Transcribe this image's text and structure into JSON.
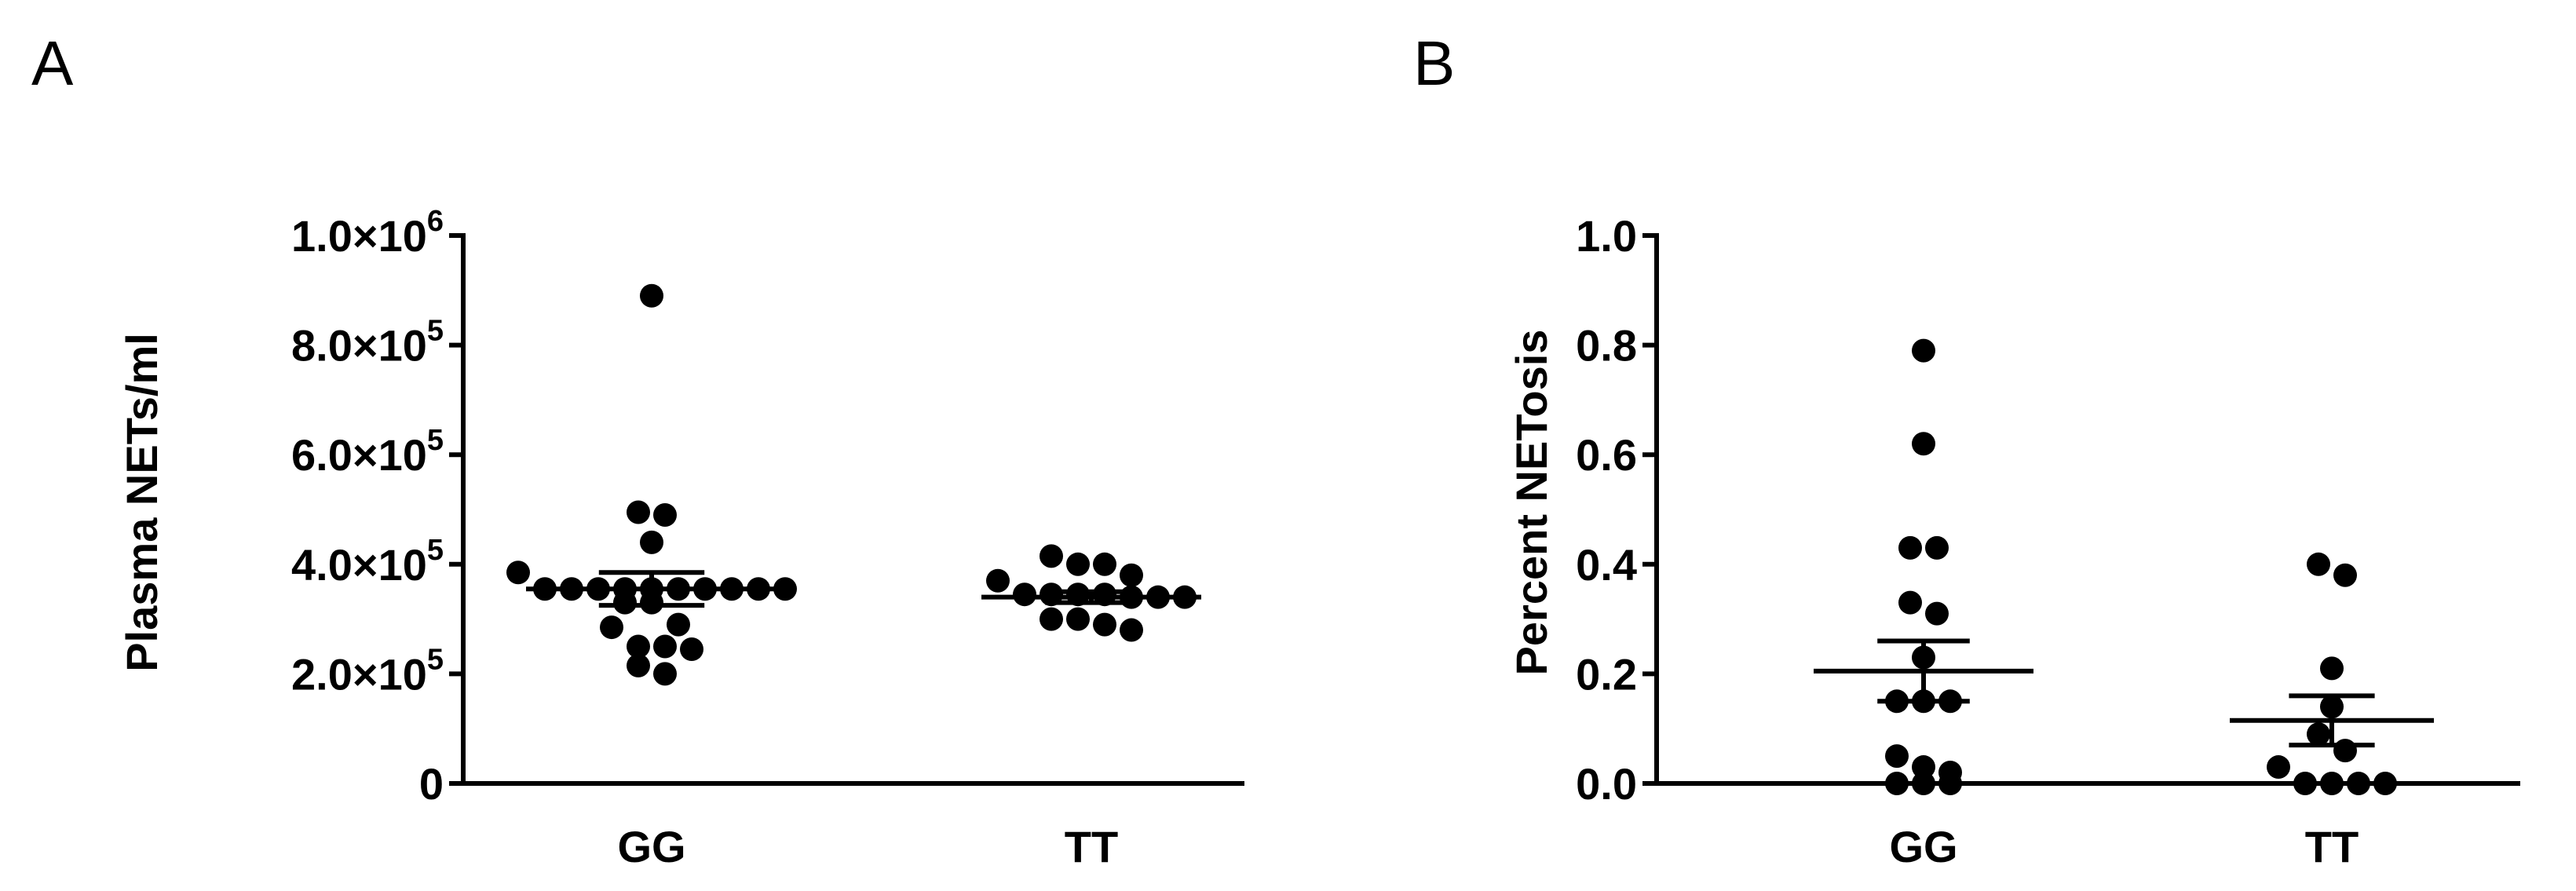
{
  "panels": [
    {
      "letter": "A",
      "chart_data": {
        "type": "scatter",
        "title": "",
        "ylabel": "Plasma NETs/ml",
        "xlabel": "",
        "categories": [
          "GG",
          "TT"
        ],
        "ylim": [
          0,
          1000000
        ],
        "yticks": [
          {
            "value": 0,
            "label": "0",
            "exp": ""
          },
          {
            "value": 200000,
            "label": "2.0×10",
            "exp": "5"
          },
          {
            "value": 400000,
            "label": "4.0×10",
            "exp": "5"
          },
          {
            "value": 600000,
            "label": "6.0×10",
            "exp": "5"
          },
          {
            "value": 800000,
            "label": "8.0×10",
            "exp": "5"
          },
          {
            "value": 1000000,
            "label": "1.0×10",
            "exp": "6"
          }
        ],
        "groups": [
          {
            "name": "GG",
            "values": [
              890000,
              495000,
              490000,
              440000,
              385000,
              355000,
              355000,
              355000,
              355000,
              355000,
              355000,
              355000,
              355000,
              355000,
              355000,
              330000,
              330000,
              290000,
              285000,
              250000,
              250000,
              245000,
              215000,
              200000
            ],
            "mean": 355000,
            "sem_upper": 385000,
            "sem_lower": 325000
          },
          {
            "name": "TT",
            "values": [
              415000,
              400000,
              400000,
              380000,
              370000,
              345000,
              345000,
              345000,
              345000,
              340000,
              340000,
              340000,
              300000,
              300000,
              290000,
              280000
            ],
            "mean": 340000,
            "sem_upper": 350000,
            "sem_lower": 330000
          }
        ]
      }
    },
    {
      "letter": "B",
      "chart_data": {
        "type": "scatter",
        "title": "",
        "ylabel": "Percent NETosis",
        "xlabel": "",
        "categories": [
          "GG",
          "TT"
        ],
        "ylim": [
          0,
          1.0
        ],
        "yticks": [
          {
            "value": 0,
            "label": "0.0",
            "exp": ""
          },
          {
            "value": 0.2,
            "label": "0.2",
            "exp": ""
          },
          {
            "value": 0.4,
            "label": "0.4",
            "exp": ""
          },
          {
            "value": 0.6,
            "label": "0.6",
            "exp": ""
          },
          {
            "value": 0.8,
            "label": "0.8",
            "exp": ""
          },
          {
            "value": 1.0,
            "label": "1.0",
            "exp": ""
          }
        ],
        "groups": [
          {
            "name": "GG",
            "values": [
              0.79,
              0.62,
              0.43,
              0.43,
              0.33,
              0.31,
              0.23,
              0.15,
              0.15,
              0.15,
              0.05,
              0.03,
              0.02,
              0.0,
              0.0,
              0.0
            ],
            "mean": 0.205,
            "sem_upper": 0.26,
            "sem_lower": 0.15
          },
          {
            "name": "TT",
            "values": [
              0.4,
              0.38,
              0.21,
              0.14,
              0.09,
              0.06,
              0.03,
              0.0,
              0.0,
              0.0,
              0.0
            ],
            "mean": 0.115,
            "sem_upper": 0.16,
            "sem_lower": 0.07
          }
        ]
      }
    }
  ]
}
